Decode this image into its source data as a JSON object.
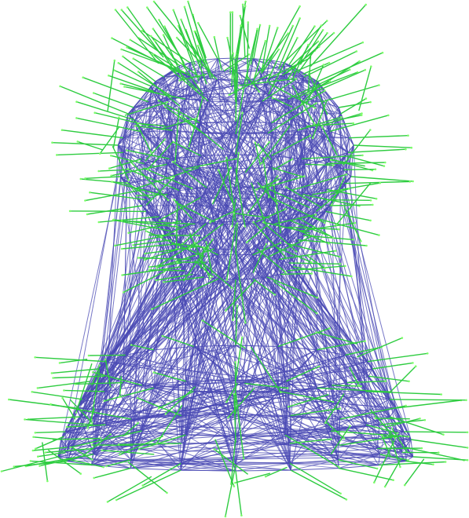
{
  "scene": {
    "background_color": "#ffffff",
    "wire_color": "#4a4ab4",
    "normal_color": "#2ecc40",
    "normal_tip_color": "#7dff6a"
  }
}
